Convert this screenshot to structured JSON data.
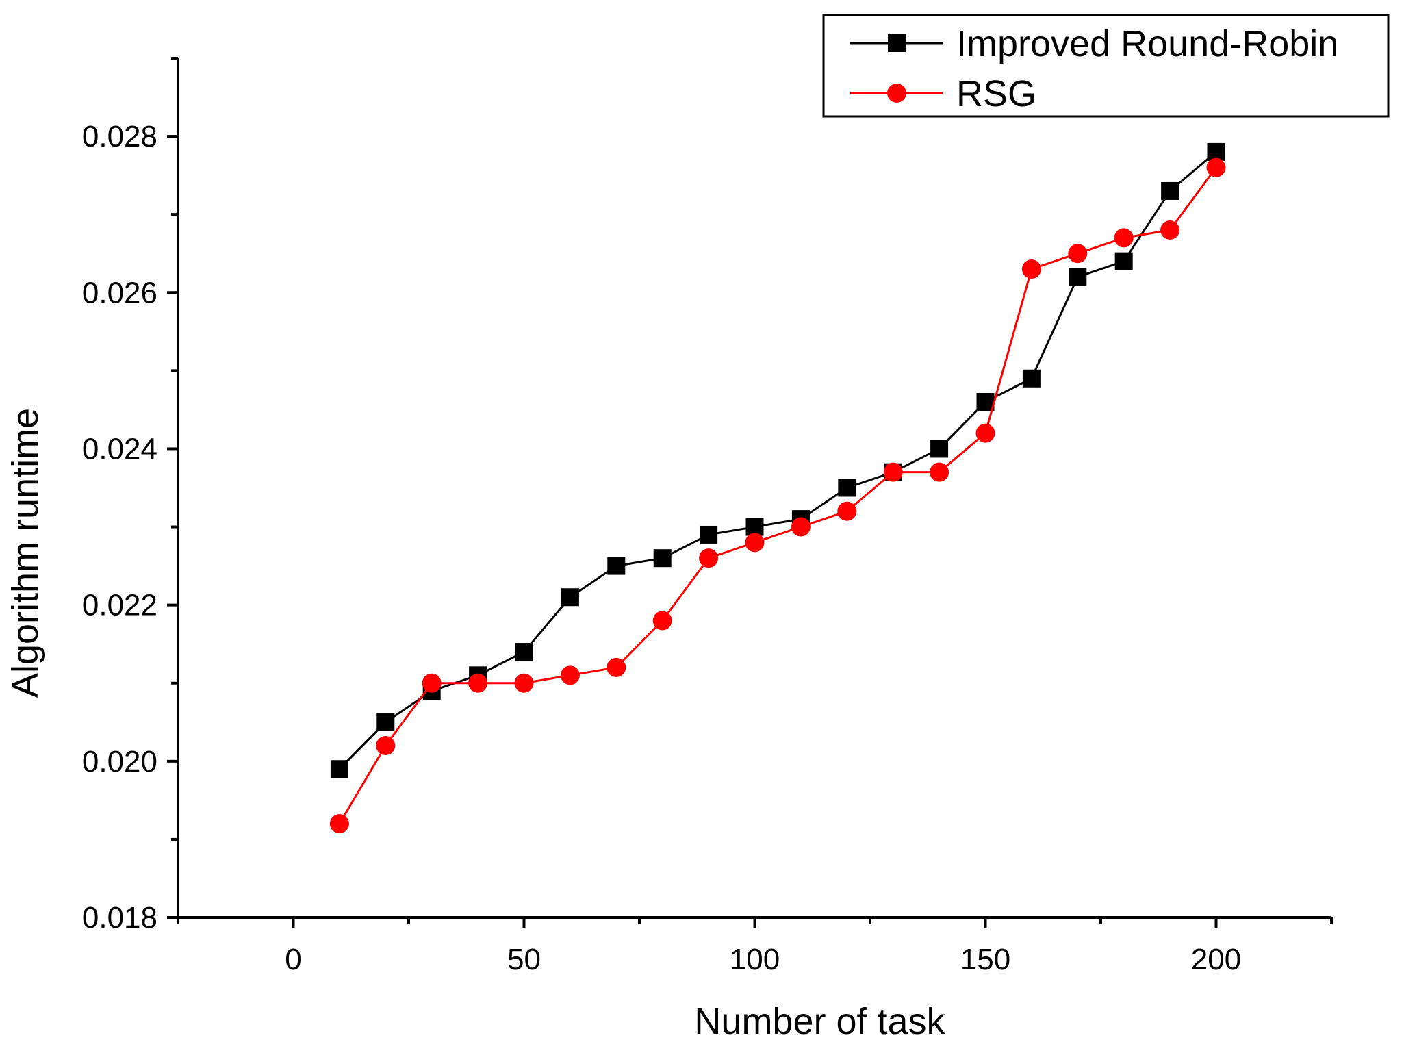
{
  "chart_data": {
    "type": "line",
    "xlabel": "Number of task",
    "ylabel": "Algorithm runtime",
    "xlim": [
      -25,
      225
    ],
    "ylim": [
      0.018,
      0.029
    ],
    "x_ticks": [
      {
        "value": 0,
        "label": "0"
      },
      {
        "value": 50,
        "label": "50"
      },
      {
        "value": 100,
        "label": "100"
      },
      {
        "value": 150,
        "label": "150"
      },
      {
        "value": 200,
        "label": "200"
      }
    ],
    "x_minor_ticks": [
      -25,
      25,
      75,
      125,
      175,
      225
    ],
    "y_ticks": [
      {
        "value": 0.018,
        "label": "0.018"
      },
      {
        "value": 0.02,
        "label": "0.020"
      },
      {
        "value": 0.022,
        "label": "0.022"
      },
      {
        "value": 0.024,
        "label": "0.024"
      },
      {
        "value": 0.026,
        "label": "0.026"
      },
      {
        "value": 0.028,
        "label": "0.028"
      }
    ],
    "y_minor_ticks": [
      0.019,
      0.021,
      0.023,
      0.025,
      0.027,
      0.029
    ],
    "grid": false,
    "legend_position": "top-right",
    "x": [
      10,
      20,
      30,
      40,
      50,
      60,
      70,
      80,
      90,
      100,
      110,
      120,
      130,
      140,
      150,
      160,
      170,
      180,
      190,
      200
    ],
    "series": [
      {
        "name": "Improved Round-Robin",
        "color": "#000000",
        "marker": "square",
        "values": [
          0.0199,
          0.0205,
          0.0209,
          0.0211,
          0.0214,
          0.0221,
          0.0225,
          0.0226,
          0.0229,
          0.023,
          0.0231,
          0.0235,
          0.0237,
          0.024,
          0.0246,
          0.0249,
          0.0262,
          0.0264,
          0.0273,
          0.0278
        ]
      },
      {
        "name": "RSG",
        "color": "#ff0000",
        "marker": "circle",
        "values": [
          0.0192,
          0.0202,
          0.021,
          0.021,
          0.021,
          0.0211,
          0.0212,
          0.0218,
          0.0226,
          0.0228,
          0.023,
          0.0232,
          0.0237,
          0.0237,
          0.0242,
          0.0263,
          0.0265,
          0.0267,
          0.0268,
          0.0276
        ]
      }
    ]
  }
}
